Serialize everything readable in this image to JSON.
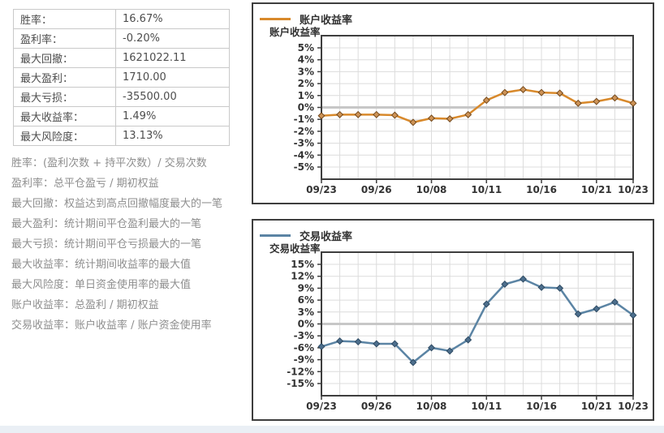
{
  "stats_table": {
    "rows": [
      {
        "label": "胜率：",
        "value": "16.67%"
      },
      {
        "label": "盈利率：",
        "value": "-0.20%"
      },
      {
        "label": "最大回撤：",
        "value": "1621022.11"
      },
      {
        "label": "最大盈利：",
        "value": "1710.00"
      },
      {
        "label": "最大亏损：",
        "value": "-35500.00"
      },
      {
        "label": "最大收益率：",
        "value": "1.49%"
      },
      {
        "label": "最大风险度：",
        "value": "13.13%"
      }
    ]
  },
  "definitions": [
    "胜率：(盈利次数 + 持平次数）/ 交易次数",
    "盈利率：总平仓盈亏 / 期初权益",
    "最大回撤：权益达到高点回撤幅度最大的一笔",
    "最大盈利：统计期间平仓盈利最大的一笔",
    "最大亏损：统计期间平仓亏损最大的一笔",
    "最大收益率：统计期间收益率的最大值",
    "最大风险度：单日资金使用率的最大值",
    "账户收益率：总盈利 / 期初权益",
    "交易收益率：账户收益率 / 账户资金使用率"
  ],
  "chart_data": [
    {
      "type": "line",
      "series_name": "account-return-rate",
      "legend": "账户收益率",
      "axis_title": "账户收益率",
      "x_tick_labels": [
        "09/23",
        "09/26",
        "10/08",
        "10/11",
        "10/16",
        "10/21",
        "10/23"
      ],
      "x_tick_indices": [
        0,
        3,
        6,
        9,
        12,
        15,
        17
      ],
      "values": [
        -0.7,
        -0.6,
        -0.6,
        -0.6,
        -0.65,
        -1.25,
        -0.9,
        -0.95,
        -0.6,
        0.6,
        1.25,
        1.5,
        1.25,
        1.2,
        0.35,
        0.5,
        0.8,
        0.35
      ],
      "y_ticks": [
        "5%",
        "4%",
        "3%",
        "2%",
        "1%",
        "0%",
        "-1%",
        "-2%",
        "-3%",
        "-4%",
        "-5%"
      ],
      "y_max": 5,
      "y_step": 1,
      "ylim": [
        -5,
        5
      ],
      "grid": true,
      "legend_position": "top-left",
      "line_color": "#d8892b",
      "marker_fill": "#cd9357",
      "marker_stroke": "#74491c"
    },
    {
      "type": "line",
      "series_name": "trade-return-rate",
      "legend": "交易收益率",
      "axis_title": "交易收益率",
      "x_tick_labels": [
        "09/23",
        "09/26",
        "10/08",
        "10/11",
        "10/16",
        "10/21",
        "10/23"
      ],
      "x_tick_indices": [
        0,
        3,
        6,
        9,
        12,
        15,
        17
      ],
      "values": [
        -5.7,
        -4.3,
        -4.5,
        -5.0,
        -5.0,
        -9.7,
        -6.0,
        -6.8,
        -4.0,
        5.0,
        10.0,
        11.3,
        9.2,
        9.0,
        2.5,
        3.8,
        5.5,
        2.2
      ],
      "y_ticks": [
        "15%",
        "12%",
        "9%",
        "6%",
        "3%",
        "0%",
        "-3%",
        "-6%",
        "-9%",
        "-12%",
        "-15%"
      ],
      "y_max": 15,
      "y_step": 3,
      "ylim": [
        -15,
        15
      ],
      "grid": true,
      "legend_position": "top-left",
      "line_color": "#5b84a4",
      "marker_fill": "#4d6f8d",
      "marker_stroke": "#2e4a63"
    }
  ]
}
